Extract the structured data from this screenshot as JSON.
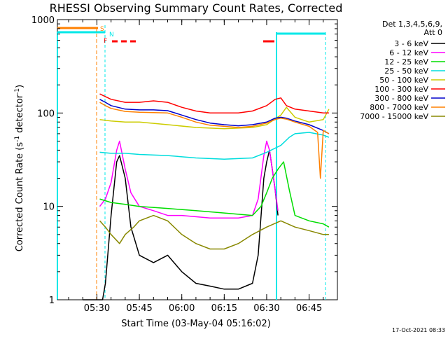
{
  "chart_data": {
    "type": "line",
    "title": "RHESSI Observing Summary Count Rates, Corrected",
    "xlabel": "Start Time (03-May-04 05:16:02)",
    "ylabel_parts": {
      "prefix": "Corrected Count Rate (s",
      "sup1": "-1",
      "mid": " detector",
      "sup2": "-1",
      "suffix": ")"
    },
    "yscale": "log",
    "ylim": [
      1,
      1000
    ],
    "xlim": [
      "05:16:02",
      "06:55:00"
    ],
    "x_ticks": [
      "05:30",
      "05:45",
      "06:00",
      "06:15",
      "06:30",
      "06:45"
    ],
    "y_ticks": [
      "1",
      "10",
      "100",
      "1000"
    ],
    "legend": {
      "header1": "Det 1,3,4,5,6,9,",
      "header2": "Att 0",
      "placement": "right"
    },
    "footer_date": "17-Oct-2021 08:33",
    "flags": [
      {
        "label": "S",
        "color": "#ff8000"
      },
      {
        "label": "N",
        "color": "#00e8e8"
      },
      {
        "label": "F",
        "color": "#ff0000"
      }
    ],
    "series": [
      {
        "name": "3 - 6 keV",
        "color": "#000000",
        "x": [
          "05:25:00",
          "05:30:00",
          "05:32:00",
          "05:33:00",
          "05:35:00",
          "05:37:00",
          "05:38:00",
          "05:40:00",
          "05:42:00",
          "05:45:00",
          "05:50:00",
          "05:55:00",
          "06:00:00",
          "06:05:00",
          "06:10:00",
          "06:15:00",
          "06:20:00",
          "06:25:00",
          "06:27:00",
          "06:29:00",
          "06:30:00",
          "06:31:00",
          "06:32:00",
          "06:33:00",
          "06:34:00"
        ],
        "y": [
          1,
          1,
          1,
          1.5,
          8,
          30,
          35,
          20,
          6,
          3,
          2.5,
          3,
          2,
          1.5,
          1.4,
          1.3,
          1.3,
          1.5,
          3,
          20,
          30,
          40,
          25,
          15,
          8
        ]
      },
      {
        "name": "6 - 12 keV",
        "color": "#ff00ff",
        "x": [
          "05:31:00",
          "05:33:00",
          "05:35:00",
          "05:37:00",
          "05:38:00",
          "05:40:00",
          "05:42:00",
          "05:45:00",
          "05:50:00",
          "05:55:00",
          "06:00:00",
          "06:10:00",
          "06:20:00",
          "06:25:00",
          "06:27:00",
          "06:29:00",
          "06:30:00",
          "06:31:00",
          "06:33:00",
          "06:34:00"
        ],
        "y": [
          10,
          12,
          18,
          40,
          50,
          25,
          14,
          10,
          9,
          8,
          8,
          7.5,
          7.5,
          8,
          12,
          35,
          50,
          40,
          15,
          9
        ]
      },
      {
        "name": "12 - 25 keV",
        "color": "#00dd00",
        "x": [
          "05:31:00",
          "05:35:00",
          "05:40:00",
          "05:45:00",
          "05:55:00",
          "06:05:00",
          "06:15:00",
          "06:25:00",
          "06:28:00",
          "06:30:00",
          "06:32:00",
          "06:34:00",
          "06:36:00",
          "06:38:00",
          "06:40:00",
          "06:45:00",
          "06:50:00",
          "06:52:00"
        ],
        "y": [
          12,
          11,
          10.5,
          10,
          9.5,
          9,
          8.5,
          8,
          10,
          14,
          20,
          25,
          30,
          15,
          8,
          7,
          6.5,
          6
        ]
      },
      {
        "name": "25 - 50 keV",
        "color": "#00dddd",
        "x": [
          "05:31:00",
          "05:35:00",
          "05:40:00",
          "05:45:00",
          "05:55:00",
          "06:05:00",
          "06:15:00",
          "06:25:00",
          "06:30:00",
          "06:35:00",
          "06:38:00",
          "06:40:00",
          "06:45:00",
          "06:50:00",
          "06:52:00"
        ],
        "y": [
          38,
          37,
          37,
          36,
          35,
          33,
          32,
          33,
          38,
          45,
          55,
          60,
          62,
          58,
          55
        ]
      },
      {
        "name": "50 - 100 keV",
        "color": "#cccc00",
        "x": [
          "05:31:00",
          "05:35:00",
          "05:40:00",
          "05:45:00",
          "05:55:00",
          "06:05:00",
          "06:15:00",
          "06:25:00",
          "06:30:00",
          "06:35:00",
          "06:37:00",
          "06:40:00",
          "06:45:00",
          "06:50:00",
          "06:52:00"
        ],
        "y": [
          85,
          82,
          80,
          80,
          75,
          70,
          68,
          70,
          75,
          95,
          115,
          90,
          80,
          85,
          110
        ]
      },
      {
        "name": "100 - 300 keV",
        "color": "#ff0000",
        "x": [
          "05:31:00",
          "05:33:00",
          "05:35:00",
          "05:40:00",
          "05:45:00",
          "05:50:00",
          "05:55:00",
          "06:00:00",
          "06:05:00",
          "06:10:00",
          "06:15:00",
          "06:20:00",
          "06:25:00",
          "06:30:00",
          "06:33:00",
          "06:35:00",
          "06:37:00",
          "06:40:00",
          "06:45:00",
          "06:50:00",
          "06:52:00"
        ],
        "y": [
          160,
          150,
          140,
          130,
          130,
          135,
          130,
          115,
          105,
          100,
          100,
          100,
          105,
          120,
          140,
          145,
          120,
          110,
          105,
          100,
          100
        ]
      },
      {
        "name": "300 - 800 keV",
        "color": "#0000cc",
        "x": [
          "05:31:00",
          "05:33:00",
          "05:35:00",
          "05:40:00",
          "05:45:00",
          "05:50:00",
          "05:55:00",
          "06:00:00",
          "06:05:00",
          "06:10:00",
          "06:15:00",
          "06:20:00",
          "06:25:00",
          "06:30:00",
          "06:33:00",
          "06:35:00",
          "06:37:00",
          "06:40:00",
          "06:45:00",
          "06:50:00",
          "06:52:00"
        ],
        "y": [
          140,
          130,
          120,
          110,
          108,
          108,
          106,
          95,
          85,
          78,
          75,
          73,
          75,
          80,
          88,
          90,
          88,
          82,
          75,
          65,
          60
        ]
      },
      {
        "name": "800 - 7000 keV",
        "color": "#ff8000",
        "x": [
          "05:31:00",
          "05:33:00",
          "05:35:00",
          "05:40:00",
          "05:45:00",
          "05:50:00",
          "05:55:00",
          "06:00:00",
          "06:05:00",
          "06:10:00",
          "06:15:00",
          "06:20:00",
          "06:25:00",
          "06:30:00",
          "06:33:00",
          "06:35:00",
          "06:37:00",
          "06:40:00",
          "06:45:00",
          "06:48:00",
          "06:49:00",
          "06:50:00",
          "06:52:00"
        ],
        "y": [
          130,
          120,
          112,
          104,
          102,
          101,
          100,
          90,
          80,
          74,
          72,
          70,
          72,
          78,
          85,
          88,
          86,
          80,
          72,
          62,
          20,
          65,
          60
        ]
      },
      {
        "name": "7000 - 15000 keV",
        "color": "#888800",
        "x": [
          "05:31:00",
          "05:33:00",
          "05:35:00",
          "05:38:00",
          "05:40:00",
          "05:43:00",
          "05:45:00",
          "05:50:00",
          "05:55:00",
          "06:00:00",
          "06:05:00",
          "06:10:00",
          "06:15:00",
          "06:20:00",
          "06:25:00",
          "06:30:00",
          "06:35:00",
          "06:40:00",
          "06:45:00",
          "06:50:00",
          "06:52:00"
        ],
        "y": [
          7,
          6,
          5,
          4,
          5,
          6,
          7,
          8,
          7,
          5,
          4,
          3.5,
          3.5,
          4,
          5,
          6,
          7,
          6,
          5.5,
          5,
          5
        ]
      }
    ]
  }
}
